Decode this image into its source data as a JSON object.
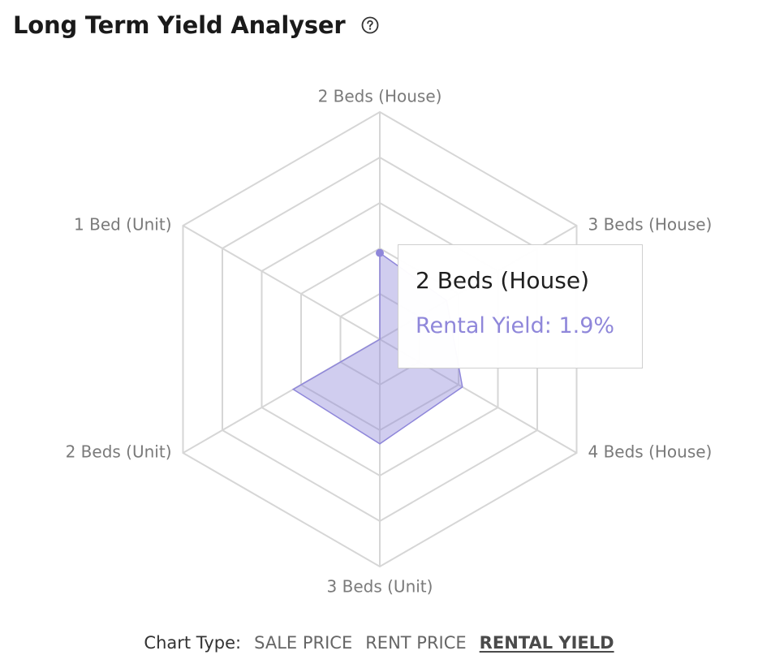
{
  "header": {
    "title": "Long Term Yield Analyser",
    "help_icon": "question-circle-icon"
  },
  "chart_data": {
    "type": "radar",
    "categories": [
      "2 Beds (House)",
      "3 Beds (House)",
      "4 Beds (House)",
      "3 Beds (Unit)",
      "2 Beds (Unit)",
      "1 Bed (Unit)"
    ],
    "series": [
      {
        "values": [
          1.9,
          1.7,
          2.1,
          2.3,
          2.2,
          0.0
        ]
      }
    ],
    "rmax": 5,
    "ring_count": 5,
    "fill_color": "#8f87da",
    "line_color": "#8f87da",
    "grid_color": "#d6d6d6"
  },
  "tooltip": {
    "title": "2 Beds (House)",
    "value": "Rental Yield: 1.9%"
  },
  "chart_type": {
    "label": "Chart Type:",
    "options": [
      "SALE PRICE",
      "RENT PRICE",
      "RENTAL YIELD"
    ],
    "active": "RENTAL YIELD"
  }
}
